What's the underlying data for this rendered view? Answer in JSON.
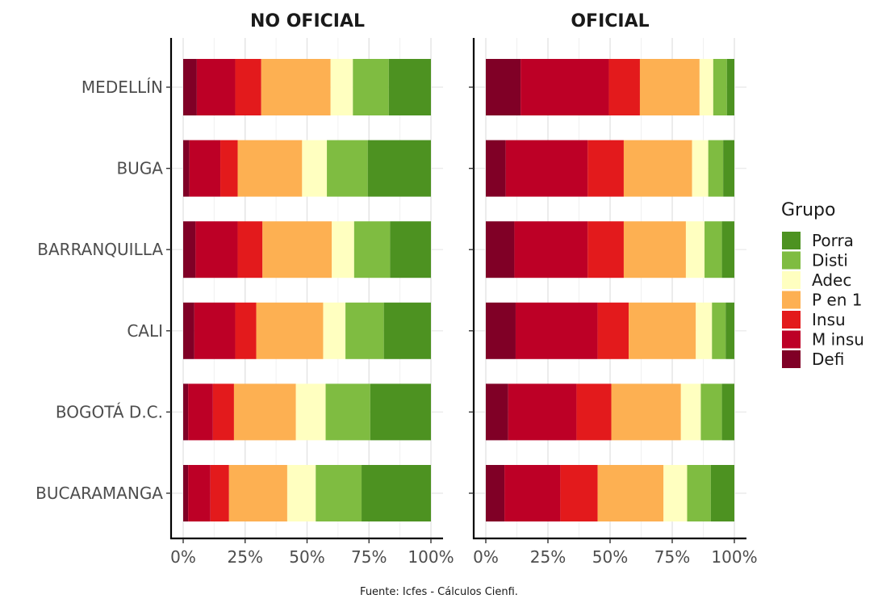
{
  "chart_data": {
    "type": "bar",
    "orientation": "horizontal",
    "stacked": "percent",
    "categories": [
      "MEDELLÍN",
      "BUGA",
      "BARRANQUILLA",
      "CALI",
      "BOGOTÁ D.C.",
      "BUCARAMANGA"
    ],
    "xlim": [
      0,
      100
    ],
    "x_ticks": [
      "0%",
      "25%",
      "50%",
      "75%",
      "100%"
    ],
    "grid": true,
    "legend_position": "right",
    "legend_title": "Grupo",
    "series_order": [
      "Defi",
      "M insu",
      "Insu",
      "P en 1",
      "Adec",
      "Disti",
      "Porra"
    ],
    "legend_order": [
      "Porra",
      "Disti",
      "Adec",
      "P en 1",
      "Insu",
      "M insu",
      "Defi"
    ],
    "colors": {
      "Defi": "#800026",
      "M insu": "#bd0026",
      "Insu": "#e31a1c",
      "P en 1": "#fdb052",
      "Adec": "#ffffc0",
      "Disti": "#7fbc41",
      "Porra": "#4d9221"
    },
    "panels": [
      {
        "title": "NO OFICIAL",
        "series": [
          {
            "name": "Defi",
            "values": [
              5.5,
              2.5,
              5.0,
              4.5,
              2.0,
              2.0
            ]
          },
          {
            "name": "M insu",
            "values": [
              15.5,
              12.5,
              17.0,
              16.5,
              10.0,
              9.0
            ]
          },
          {
            "name": "Insu",
            "values": [
              10.5,
              7.0,
              10.0,
              8.5,
              8.5,
              7.5
            ]
          },
          {
            "name": "P en 1",
            "values": [
              28.0,
              26.0,
              28.0,
              27.0,
              25.0,
              23.5
            ]
          },
          {
            "name": "Adec",
            "values": [
              9.0,
              10.0,
              9.0,
              9.0,
              12.0,
              11.5
            ]
          },
          {
            "name": "Disti",
            "values": [
              14.5,
              16.5,
              14.5,
              15.5,
              18.0,
              18.5
            ]
          },
          {
            "name": "Porra",
            "values": [
              17.0,
              25.5,
              16.5,
              19.0,
              24.5,
              28.0
            ]
          }
        ]
      },
      {
        "title": "OFICIAL",
        "series": [
          {
            "name": "Defi",
            "values": [
              14.0,
              8.0,
              11.5,
              12.0,
              9.0,
              7.5
            ]
          },
          {
            "name": "M insu",
            "values": [
              35.5,
              33.0,
              29.5,
              33.0,
              27.5,
              22.5
            ]
          },
          {
            "name": "Insu",
            "values": [
              12.5,
              14.5,
              14.5,
              12.5,
              14.0,
              15.0
            ]
          },
          {
            "name": "P en 1",
            "values": [
              24.0,
              27.5,
              25.0,
              27.0,
              28.0,
              26.5
            ]
          },
          {
            "name": "Adec",
            "values": [
              5.5,
              6.5,
              7.5,
              6.5,
              8.0,
              9.5
            ]
          },
          {
            "name": "Disti",
            "values": [
              5.5,
              6.0,
              7.0,
              5.5,
              8.5,
              9.5
            ]
          },
          {
            "name": "Porra",
            "values": [
              3.0,
              4.5,
              5.0,
              3.5,
              5.0,
              9.5
            ]
          }
        ]
      }
    ],
    "caption": "Fuente: Icfes - Cálculos Cienfi."
  }
}
